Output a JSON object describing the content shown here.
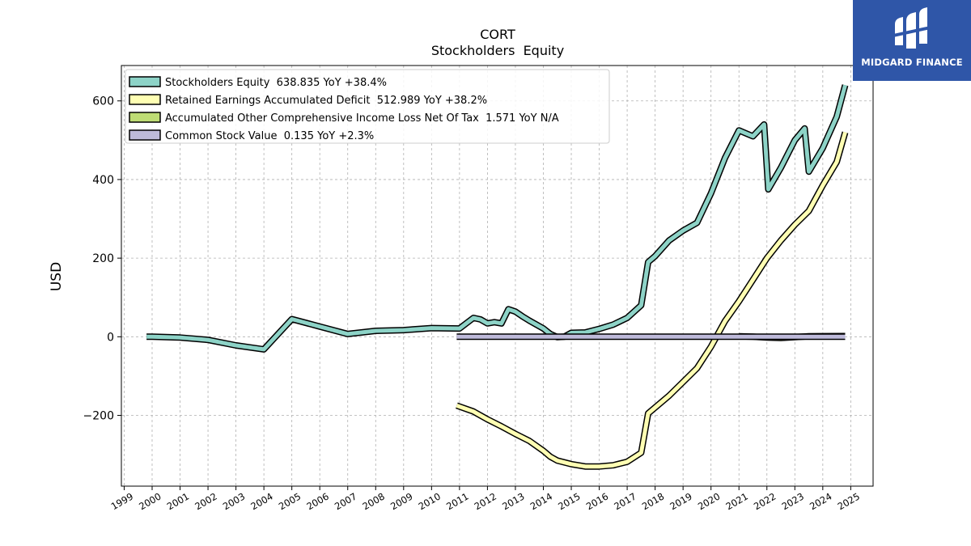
{
  "brand": {
    "name": "MIDGARD FINANCE",
    "bg_color": "#2f56a8"
  },
  "chart_data": {
    "type": "line",
    "title": "CORT",
    "subtitle": "Stockholders  Equity",
    "ylabel": "USD",
    "xlabel": "",
    "ylim": [
      -380,
      690
    ],
    "xlim": [
      1998.9,
      2025.8
    ],
    "yticks": [
      -200,
      0,
      200,
      400,
      600
    ],
    "xticks": [
      1999,
      2000,
      2001,
      2002,
      2003,
      2004,
      2005,
      2006,
      2007,
      2008,
      2009,
      2010,
      2011,
      2012,
      2013,
      2014,
      2015,
      2016,
      2017,
      2018,
      2019,
      2020,
      2021,
      2022,
      2023,
      2024,
      2025
    ],
    "grid": true,
    "legend_position": "top-left",
    "series": [
      {
        "name": "Stockholders Equity",
        "legend": "Stockholders Equity  638.835 YoY +38.4%",
        "color": "#8dd3c7",
        "points": [
          [
            1999.8,
            0
          ],
          [
            2000,
            0
          ],
          [
            2001,
            -2
          ],
          [
            2002,
            -8
          ],
          [
            2003,
            -22
          ],
          [
            2004,
            -32
          ],
          [
            2005,
            45
          ],
          [
            2006,
            26
          ],
          [
            2007,
            7
          ],
          [
            2008,
            15
          ],
          [
            2009,
            17
          ],
          [
            2010,
            22
          ],
          [
            2011,
            21
          ],
          [
            2011.5,
            48
          ],
          [
            2011.75,
            44
          ],
          [
            2012,
            34
          ],
          [
            2012.25,
            37
          ],
          [
            2012.5,
            34
          ],
          [
            2012.75,
            70
          ],
          [
            2013,
            64
          ],
          [
            2013.25,
            52
          ],
          [
            2013.5,
            41
          ],
          [
            2014,
            21
          ],
          [
            2014.25,
            7
          ],
          [
            2014.5,
            -1
          ],
          [
            2014.75,
            0
          ],
          [
            2015,
            10
          ],
          [
            2015.5,
            11
          ],
          [
            2016,
            20
          ],
          [
            2016.5,
            31
          ],
          [
            2017,
            48
          ],
          [
            2017.5,
            80
          ],
          [
            2017.75,
            190
          ],
          [
            2018,
            205
          ],
          [
            2018.5,
            245
          ],
          [
            2019,
            270
          ],
          [
            2019.5,
            290
          ],
          [
            2020,
            365
          ],
          [
            2020.5,
            455
          ],
          [
            2021,
            525
          ],
          [
            2021.5,
            510
          ],
          [
            2021.9,
            540
          ],
          [
            2022.05,
            375
          ],
          [
            2022.5,
            430
          ],
          [
            2023,
            500
          ],
          [
            2023.35,
            530
          ],
          [
            2023.5,
            420
          ],
          [
            2024,
            480
          ],
          [
            2024.5,
            560
          ],
          [
            2024.8,
            640
          ]
        ]
      },
      {
        "name": "Retained Earnings Accumulated Deficit",
        "legend": "Retained Earnings Accumulated Deficit  512.989 YoY +38.2%",
        "color": "#ffffb3",
        "points": [
          [
            2010.9,
            -175
          ],
          [
            2011.5,
            -190
          ],
          [
            2012,
            -210
          ],
          [
            2012.5,
            -228
          ],
          [
            2013,
            -247
          ],
          [
            2013.5,
            -265
          ],
          [
            2014,
            -290
          ],
          [
            2014.25,
            -305
          ],
          [
            2014.5,
            -315
          ],
          [
            2015,
            -324
          ],
          [
            2015.5,
            -330
          ],
          [
            2016,
            -330
          ],
          [
            2016.5,
            -327
          ],
          [
            2017,
            -318
          ],
          [
            2017.5,
            -295
          ],
          [
            2017.75,
            -195
          ],
          [
            2018,
            -180
          ],
          [
            2018.5,
            -150
          ],
          [
            2019,
            -115
          ],
          [
            2019.5,
            -80
          ],
          [
            2020,
            -25
          ],
          [
            2020.5,
            40
          ],
          [
            2021,
            90
          ],
          [
            2021.5,
            145
          ],
          [
            2022,
            200
          ],
          [
            2022.5,
            245
          ],
          [
            2023,
            285
          ],
          [
            2023.5,
            320
          ],
          [
            2024,
            385
          ],
          [
            2024.5,
            445
          ],
          [
            2024.8,
            520
          ]
        ]
      },
      {
        "name": "Accumulated Other Comprehensive Income Loss Net Of Tax",
        "legend": "Accumulated Other Comprehensive Income Loss Net Of Tax  1.571 YoY N/A",
        "color": "#bedc74",
        "points": [
          [
            2021,
            1
          ],
          [
            2021.5,
            0
          ],
          [
            2022,
            -2
          ],
          [
            2022.5,
            -3
          ],
          [
            2023,
            -1
          ],
          [
            2023.5,
            1
          ],
          [
            2024,
            1.5
          ],
          [
            2024.8,
            1.6
          ]
        ]
      },
      {
        "name": "Common Stock Value",
        "legend": "Common Stock Value  0.135 YoY +2.3%",
        "color": "#bebada",
        "points": [
          [
            2010.9,
            0.1
          ],
          [
            2024.8,
            0.135
          ]
        ]
      }
    ]
  }
}
